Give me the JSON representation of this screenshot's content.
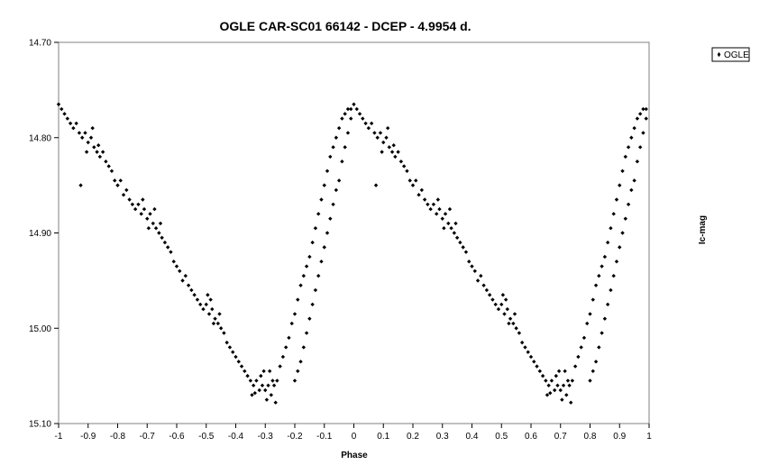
{
  "chart_data": {
    "type": "scatter",
    "title": "OGLE CAR-SC01 66142 - DCEP - 4.9954 d.",
    "xlabel": "Phase",
    "ylabel": "Ic-mag",
    "xlim": [
      -1,
      1
    ],
    "ylim": [
      14.7,
      15.1
    ],
    "y_inverted": true,
    "grid": false,
    "legend": {
      "placement": "right",
      "entries": [
        "OGLE"
      ]
    },
    "x_ticks": [
      "-1",
      "-0.9",
      "-0.8",
      "-0.7",
      "-0.6",
      "-0.5",
      "-0.4",
      "-0.3",
      "-0.2",
      "-0.1",
      "0",
      "0.1",
      "0.2",
      "0.3",
      "0.4",
      "0.5",
      "0.6",
      "0.7",
      "0.8",
      "0.9",
      "1"
    ],
    "y_ticks": [
      "14.70",
      "14.80",
      "14.90",
      "15.00",
      "15.10"
    ],
    "series": [
      {
        "name": "OGLE",
        "marker": "diamond",
        "color": "#000000",
        "points": [
          [
            0.0,
            14.765
          ],
          [
            0.01,
            14.77
          ],
          [
            0.02,
            14.775
          ],
          [
            0.03,
            14.78
          ],
          [
            0.04,
            14.785
          ],
          [
            0.05,
            14.79
          ],
          [
            0.06,
            14.785
          ],
          [
            0.07,
            14.795
          ],
          [
            0.08,
            14.8
          ],
          [
            0.09,
            14.795
          ],
          [
            0.1,
            14.805
          ],
          [
            0.11,
            14.8
          ],
          [
            0.12,
            14.81
          ],
          [
            0.13,
            14.815
          ],
          [
            0.14,
            14.82
          ],
          [
            0.15,
            14.815
          ],
          [
            0.16,
            14.825
          ],
          [
            0.17,
            14.83
          ],
          [
            0.18,
            14.835
          ],
          [
            0.19,
            14.845
          ],
          [
            0.2,
            14.85
          ],
          [
            0.21,
            14.845
          ],
          [
            0.22,
            14.86
          ],
          [
            0.23,
            14.855
          ],
          [
            0.24,
            14.865
          ],
          [
            0.25,
            14.87
          ],
          [
            0.26,
            14.875
          ],
          [
            0.27,
            14.87
          ],
          [
            0.28,
            14.88
          ],
          [
            0.29,
            14.875
          ],
          [
            0.3,
            14.885
          ],
          [
            0.31,
            14.88
          ],
          [
            0.32,
            14.89
          ],
          [
            0.33,
            14.895
          ],
          [
            0.34,
            14.9
          ],
          [
            0.35,
            14.905
          ],
          [
            0.36,
            14.91
          ],
          [
            0.37,
            14.915
          ],
          [
            0.38,
            14.92
          ],
          [
            0.39,
            14.93
          ],
          [
            0.4,
            14.935
          ],
          [
            0.41,
            14.94
          ],
          [
            0.42,
            14.95
          ],
          [
            0.43,
            14.945
          ],
          [
            0.44,
            14.955
          ],
          [
            0.45,
            14.96
          ],
          [
            0.46,
            14.965
          ],
          [
            0.47,
            14.97
          ],
          [
            0.48,
            14.975
          ],
          [
            0.49,
            14.98
          ],
          [
            0.5,
            14.975
          ],
          [
            0.51,
            14.985
          ],
          [
            0.52,
            14.98
          ],
          [
            0.53,
            14.99
          ],
          [
            0.54,
            14.995
          ],
          [
            0.55,
            15.0
          ],
          [
            0.56,
            15.005
          ],
          [
            0.57,
            15.015
          ],
          [
            0.58,
            15.02
          ],
          [
            0.59,
            15.025
          ],
          [
            0.6,
            15.03
          ],
          [
            0.61,
            15.035
          ],
          [
            0.62,
            15.04
          ],
          [
            0.63,
            15.045
          ],
          [
            0.64,
            15.05
          ],
          [
            0.65,
            15.055
          ],
          [
            0.66,
            15.06
          ],
          [
            0.67,
            15.055
          ],
          [
            0.68,
            15.065
          ],
          [
            0.69,
            15.06
          ],
          [
            0.7,
            15.065
          ],
          [
            0.71,
            15.06
          ],
          [
            0.72,
            15.07
          ],
          [
            0.73,
            15.06
          ],
          [
            0.74,
            15.055
          ],
          [
            0.75,
            15.04
          ],
          [
            0.76,
            15.03
          ],
          [
            0.77,
            15.02
          ],
          [
            0.78,
            15.01
          ],
          [
            0.79,
            14.995
          ],
          [
            0.8,
            14.985
          ],
          [
            0.81,
            14.97
          ],
          [
            0.82,
            14.955
          ],
          [
            0.83,
            14.945
          ],
          [
            0.84,
            14.935
          ],
          [
            0.85,
            14.925
          ],
          [
            0.86,
            14.91
          ],
          [
            0.87,
            14.895
          ],
          [
            0.88,
            14.88
          ],
          [
            0.89,
            14.865
          ],
          [
            0.9,
            14.85
          ],
          [
            0.91,
            14.835
          ],
          [
            0.92,
            14.82
          ],
          [
            0.93,
            14.81
          ],
          [
            0.94,
            14.8
          ],
          [
            0.95,
            14.79
          ],
          [
            0.96,
            14.78
          ],
          [
            0.97,
            14.775
          ],
          [
            0.98,
            14.77
          ],
          [
            0.99,
            14.77
          ],
          [
            0.095,
            14.815
          ],
          [
            0.115,
            14.79
          ],
          [
            0.135,
            14.808
          ],
          [
            0.075,
            14.85
          ],
          [
            0.285,
            14.865
          ],
          [
            0.305,
            14.895
          ],
          [
            0.325,
            14.875
          ],
          [
            0.345,
            14.89
          ],
          [
            0.505,
            14.965
          ],
          [
            0.525,
            14.995
          ],
          [
            0.545,
            14.985
          ],
          [
            0.515,
            14.97
          ],
          [
            0.685,
            15.05
          ],
          [
            0.705,
            15.075
          ],
          [
            0.725,
            15.055
          ],
          [
            0.695,
            15.045
          ],
          [
            0.665,
            15.068
          ],
          [
            0.735,
            15.078
          ],
          [
            0.655,
            15.07
          ],
          [
            0.715,
            15.045
          ],
          [
            -0.05,
            14.845
          ],
          [
            -0.06,
            14.855
          ],
          [
            -0.07,
            14.87
          ],
          [
            -0.08,
            14.885
          ],
          [
            -0.09,
            14.9
          ],
          [
            -0.1,
            14.915
          ],
          [
            -0.11,
            14.93
          ],
          [
            -0.12,
            14.945
          ],
          [
            -0.13,
            14.96
          ],
          [
            -0.14,
            14.975
          ],
          [
            -0.15,
            14.99
          ],
          [
            -0.16,
            15.005
          ],
          [
            -0.17,
            15.02
          ],
          [
            -0.18,
            15.035
          ],
          [
            -0.19,
            15.045
          ],
          [
            -0.2,
            15.055
          ],
          [
            -0.03,
            14.81
          ],
          [
            -0.04,
            14.825
          ],
          [
            -0.02,
            14.795
          ],
          [
            -0.01,
            14.78
          ]
        ]
      }
    ]
  },
  "legend_label": "OGLE"
}
